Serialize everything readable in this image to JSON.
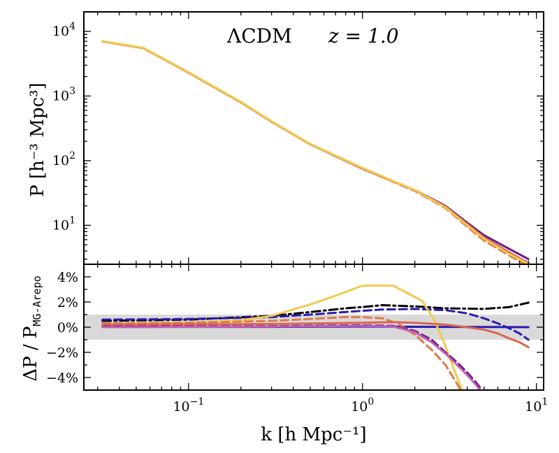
{
  "chart_data": [
    {
      "type": "line",
      "panel": "top",
      "title": "ΛCDM",
      "annotation": "z = 1.0",
      "xscale": "log",
      "yscale": "log",
      "xlim": [
        0.025,
        11
      ],
      "ylim": [
        2.5,
        20000
      ],
      "ylabel": "P [h⁻³ Mpc³]",
      "y_ticks": [
        {
          "value": 10,
          "base": "10",
          "exp": "1"
        },
        {
          "value": 100,
          "base": "10",
          "exp": "2"
        },
        {
          "value": 1000,
          "base": "10",
          "exp": "3"
        },
        {
          "value": 10000,
          "base": "10",
          "exp": "4"
        }
      ],
      "series": [
        {
          "color": "#6a1a8a",
          "style": "solid",
          "x": [
            0.032,
            0.055,
            0.1,
            0.2,
            0.3,
            0.5,
            1.0,
            2.0,
            3.0,
            4.0,
            5.0,
            7.0,
            9.0
          ],
          "y": [
            7000,
            5500,
            2300,
            800,
            400,
            180,
            75,
            35,
            20,
            11,
            7,
            4.3,
            3.0
          ]
        },
        {
          "color": "#d9664f",
          "style": "solid",
          "x": [
            0.032,
            0.055,
            0.1,
            0.2,
            0.3,
            0.5,
            1.0,
            2.0,
            3.0,
            4.0,
            5.0,
            7.0,
            9.0
          ],
          "y": [
            7000,
            5500,
            2300,
            800,
            400,
            180,
            75,
            35,
            19.5,
            10.5,
            6.5,
            3.8,
            2.6
          ]
        },
        {
          "color": "#e07a4a",
          "style": "dashed",
          "x": [
            0.032,
            0.055,
            0.1,
            0.2,
            0.3,
            0.5,
            1.0,
            2.0,
            3.0,
            4.0,
            5.0,
            7.0,
            9.0
          ],
          "y": [
            7000,
            5500,
            2300,
            800,
            400,
            180,
            75,
            34,
            18.5,
            9.5,
            5.8,
            3.4,
            2.3
          ]
        },
        {
          "color": "#f2c94c",
          "style": "solid",
          "x": [
            0.032,
            0.055,
            0.1,
            0.2,
            0.3,
            0.5,
            1.0,
            2.0,
            3.0,
            4.0,
            5.0,
            7.0,
            9.0
          ],
          "y": [
            7050,
            5550,
            2330,
            810,
            405,
            182,
            77,
            35,
            19,
            10,
            6.2,
            3.6,
            2.5
          ]
        }
      ]
    },
    {
      "type": "line",
      "panel": "bottom",
      "xscale": "log",
      "xlim": [
        0.025,
        11
      ],
      "ylim": [
        -5,
        5
      ],
      "ylabel": "ΔP / P",
      "ylabel_subscript": "MG-Arepo",
      "xlabel": "k [h Mpc⁻¹]",
      "x_ticks": [
        {
          "value": 0.1,
          "base": "10",
          "exp": "−1"
        },
        {
          "value": 1,
          "base": "10",
          "exp": "0"
        },
        {
          "value": 10,
          "base": "10",
          "exp": "1"
        }
      ],
      "y_ticks": [
        {
          "value": 4,
          "label": "4%"
        },
        {
          "value": 2,
          "label": "2%"
        },
        {
          "value": 0,
          "label": "0%"
        },
        {
          "value": -2,
          "label": "−2%"
        },
        {
          "value": -4,
          "label": "−4%"
        }
      ],
      "band": {
        "color": "#d9d9d9",
        "y0": -1,
        "y1": 1
      },
      "series": [
        {
          "color": "#000000",
          "style": "dashdot",
          "x": [
            0.032,
            0.1,
            0.3,
            0.5,
            0.8,
            1.0,
            1.3,
            2.0,
            3.0,
            5.0,
            7.0,
            9.0
          ],
          "y": [
            0.5,
            0.6,
            0.9,
            1.2,
            1.5,
            1.6,
            1.75,
            1.65,
            1.5,
            1.45,
            1.6,
            1.95
          ]
        },
        {
          "color": "#2a1bb0",
          "style": "dashed",
          "x": [
            0.032,
            0.1,
            0.3,
            0.5,
            1.0,
            1.3,
            2.0,
            3.0,
            4.0,
            5.0,
            6.0,
            7.0,
            8.0,
            9.0
          ],
          "y": [
            0.6,
            0.65,
            0.8,
            1.0,
            1.3,
            1.4,
            1.45,
            1.35,
            1.1,
            0.7,
            0.3,
            -0.1,
            -0.5,
            -1.0
          ]
        },
        {
          "color": "#2a1bb0",
          "style": "solid",
          "x": [
            0.032,
            0.3,
            1.0,
            2.0,
            5.0,
            9.0
          ],
          "y": [
            0.02,
            0.02,
            0.05,
            0.03,
            0.01,
            0.0
          ]
        },
        {
          "color": "#f2c94c",
          "style": "solid",
          "x": [
            0.032,
            0.1,
            0.2,
            0.3,
            0.5,
            0.7,
            1.0,
            1.5,
            2.2,
            2.6,
            3.0,
            3.5,
            4.0
          ],
          "y": [
            0.3,
            0.35,
            0.55,
            0.9,
            1.8,
            2.5,
            3.3,
            3.3,
            2.1,
            0.5,
            -1.5,
            -4.0,
            -6.0
          ]
        },
        {
          "color": "#e07a4a",
          "style": "dashed",
          "x": [
            0.032,
            0.1,
            0.3,
            0.5,
            0.8,
            1.0,
            1.3,
            1.6,
            2.0,
            2.5,
            3.0,
            3.5,
            4.0
          ],
          "y": [
            0.3,
            0.35,
            0.5,
            0.65,
            0.8,
            0.8,
            0.7,
            0.3,
            -0.6,
            -1.8,
            -3.0,
            -4.5,
            -6.0
          ]
        },
        {
          "color": "#d9664f",
          "style": "solid",
          "x": [
            0.032,
            0.3,
            1.0,
            1.5,
            2.0,
            3.0,
            4.0,
            5.0,
            6.0,
            7.0,
            8.0,
            9.0
          ],
          "y": [
            0.2,
            0.25,
            0.35,
            0.4,
            0.35,
            0.2,
            0.0,
            -0.2,
            -0.5,
            -0.9,
            -1.2,
            -1.6
          ]
        },
        {
          "color": "#6a1a8a",
          "style": "dashed",
          "x": [
            0.032,
            0.3,
            1.0,
            1.5,
            2.0,
            2.5,
            3.0,
            3.5,
            4.0,
            4.5,
            5.0,
            5.5
          ],
          "y": [
            0.05,
            0.08,
            0.15,
            0.1,
            -0.3,
            -1.0,
            -2.0,
            -2.8,
            -3.6,
            -4.4,
            -5.2,
            -6.0
          ]
        },
        {
          "color": "#c45fb3",
          "style": "solid",
          "x": [
            0.032,
            0.3,
            1.0,
            1.5,
            2.0,
            2.5,
            3.0,
            3.5,
            4.0,
            4.5,
            5.0,
            5.5
          ],
          "y": [
            0.0,
            0.05,
            0.1,
            0.05,
            -0.4,
            -1.2,
            -2.1,
            -3.0,
            -3.8,
            -4.6,
            -5.4,
            -6.2
          ]
        }
      ]
    }
  ]
}
